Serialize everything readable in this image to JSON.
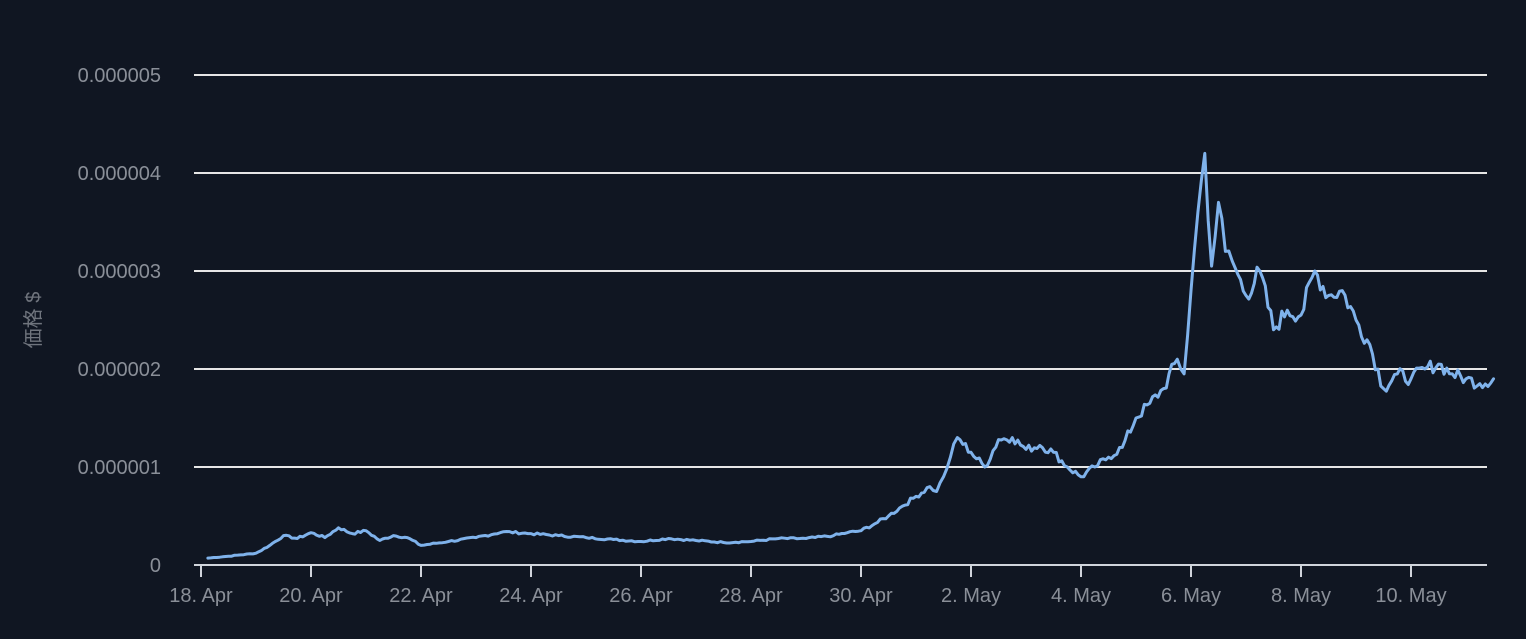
{
  "chart_data": {
    "type": "line",
    "title": "",
    "xlabel": "",
    "ylabel": "価格 $",
    "ylim": [
      0,
      5e-06
    ],
    "yticks": [
      {
        "value": 0,
        "label": "0"
      },
      {
        "value": 1e-06,
        "label": "0.000001"
      },
      {
        "value": 2e-06,
        "label": "0.000002"
      },
      {
        "value": 3e-06,
        "label": "0.000003"
      },
      {
        "value": 4e-06,
        "label": "0.000004"
      },
      {
        "value": 5e-06,
        "label": "0.000005"
      }
    ],
    "xlim": [
      "2021-04-18",
      "2021-05-11T14:00"
    ],
    "xticks": [
      {
        "value": "2021-04-18",
        "label": "18. Apr"
      },
      {
        "value": "2021-04-20",
        "label": "20. Apr"
      },
      {
        "value": "2021-04-22",
        "label": "22. Apr"
      },
      {
        "value": "2021-04-24",
        "label": "24. Apr"
      },
      {
        "value": "2021-04-26",
        "label": "26. Apr"
      },
      {
        "value": "2021-04-28",
        "label": "28. Apr"
      },
      {
        "value": "2021-04-30",
        "label": "30. Apr"
      },
      {
        "value": "2021-05-02",
        "label": "2. May"
      },
      {
        "value": "2021-05-04",
        "label": "4. May"
      },
      {
        "value": "2021-05-06",
        "label": "6. May"
      },
      {
        "value": "2021-05-08",
        "label": "8. May"
      },
      {
        "value": "2021-05-10",
        "label": "10. May"
      }
    ],
    "grid": true,
    "legend": "none",
    "colors": {
      "background": "#101622",
      "line": "#7fb2eb",
      "grid": "#e6e6e6",
      "tick_text": "#8a8f98"
    },
    "series": [
      {
        "x": [
          "2021-04-18T03:00",
          "2021-04-18T12:00",
          "2021-04-19T00:00",
          "2021-04-19T06:00",
          "2021-04-19T12:00",
          "2021-04-19T18:00",
          "2021-04-20T00:00",
          "2021-04-20T06:00",
          "2021-04-20T12:00",
          "2021-04-20T18:00",
          "2021-04-21T00:00",
          "2021-04-21T06:00",
          "2021-04-21T12:00",
          "2021-04-21T18:00",
          "2021-04-22T00:00",
          "2021-04-22T12:00",
          "2021-04-23T00:00",
          "2021-04-23T12:00",
          "2021-04-24T00:00",
          "2021-04-24T12:00",
          "2021-04-25T00:00",
          "2021-04-25T12:00",
          "2021-04-26T00:00",
          "2021-04-26T12:00",
          "2021-04-27T00:00",
          "2021-04-27T12:00",
          "2021-04-28T00:00",
          "2021-04-28T12:00",
          "2021-04-29T00:00",
          "2021-04-29T12:00",
          "2021-04-29T18:00",
          "2021-04-30T00:00",
          "2021-04-30T06:00",
          "2021-04-30T12:00",
          "2021-04-30T18:00",
          "2021-05-01T00:00",
          "2021-05-01T06:00",
          "2021-05-01T09:00",
          "2021-05-01T12:00",
          "2021-05-01T15:00",
          "2021-05-01T18:00",
          "2021-05-02T00:00",
          "2021-05-02T06:00",
          "2021-05-02T12:00",
          "2021-05-02T18:00",
          "2021-05-03T00:00",
          "2021-05-03T06:00",
          "2021-05-03T12:00",
          "2021-05-03T18:00",
          "2021-05-04T00:00",
          "2021-05-04T06:00",
          "2021-05-04T12:00",
          "2021-05-04T18:00",
          "2021-05-05T00:00",
          "2021-05-05T06:00",
          "2021-05-05T12:00",
          "2021-05-05T18:00",
          "2021-05-05T21:00",
          "2021-05-06T00:00",
          "2021-05-06T03:00",
          "2021-05-06T06:00",
          "2021-05-06T09:00",
          "2021-05-06T12:00",
          "2021-05-06T15:00",
          "2021-05-06T18:00",
          "2021-05-07T00:00",
          "2021-05-07T06:00",
          "2021-05-07T12:00",
          "2021-05-07T18:00",
          "2021-05-08T00:00",
          "2021-05-08T06:00",
          "2021-05-08T12:00",
          "2021-05-08T18:00",
          "2021-05-09T00:00",
          "2021-05-09T06:00",
          "2021-05-09T12:00",
          "2021-05-09T18:00",
          "2021-05-10T00:00",
          "2021-05-10T06:00",
          "2021-05-10T12:00",
          "2021-05-10T18:00",
          "2021-05-11T00:00",
          "2021-05-11T06:00",
          "2021-05-11T12:00"
        ],
        "y": [
          7e-08,
          9e-08,
          1.2e-07,
          2e-07,
          3e-07,
          2.7e-07,
          3.3e-07,
          2.8e-07,
          3.8e-07,
          3.2e-07,
          3.5e-07,
          2.5e-07,
          3e-07,
          2.8e-07,
          2e-07,
          2.4e-07,
          2.8e-07,
          3.4e-07,
          3.2e-07,
          3e-07,
          2.8e-07,
          2.6e-07,
          2.4e-07,
          2.7e-07,
          2.5e-07,
          2.3e-07,
          2.4e-07,
          2.7e-07,
          2.7e-07,
          3e-07,
          3.3e-07,
          3.5e-07,
          4.2e-07,
          5e-07,
          6e-07,
          7e-07,
          8e-07,
          7.5e-07,
          9e-07,
          1.1e-06,
          1.3e-06,
          1.15e-06,
          1e-06,
          1.28e-06,
          1.3e-06,
          1.18e-06,
          1.22e-06,
          1.15e-06,
          1e-06,
          9e-07,
          1e-06,
          1.1e-06,
          1.2e-06,
          1.5e-06,
          1.65e-06,
          1.8e-06,
          2.1e-06,
          1.95e-06,
          2.8e-06,
          3.6e-06,
          4.2e-06,
          3.05e-06,
          3.7e-06,
          3.2e-06,
          3.1e-06,
          2.75e-06,
          3e-06,
          2.4e-06,
          2.6e-06,
          2.55e-06,
          3e-06,
          2.75e-06,
          2.8e-06,
          2.5e-06,
          2.25e-06,
          1.8e-06,
          1.95e-06,
          1.9e-06,
          2e-06,
          2.05e-06,
          1.95e-06,
          1.9e-06,
          1.85e-06,
          1.9e-06
        ]
      }
    ]
  }
}
